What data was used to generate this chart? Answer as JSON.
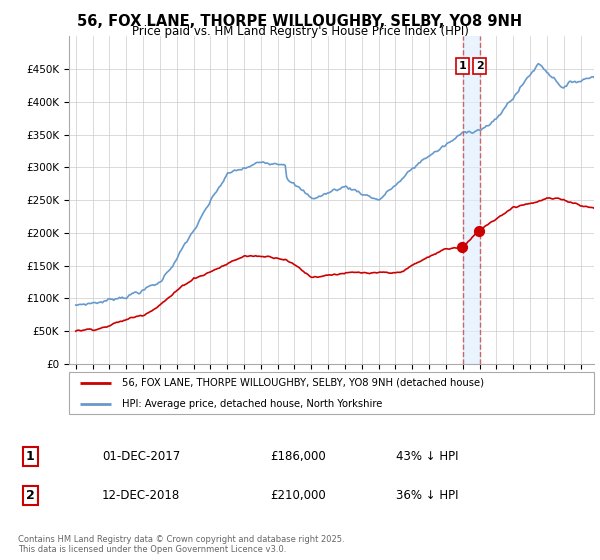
{
  "title": "56, FOX LANE, THORPE WILLOUGHBY, SELBY, YO8 9NH",
  "subtitle": "Price paid vs. HM Land Registry's House Price Index (HPI)",
  "legend_label_red": "56, FOX LANE, THORPE WILLOUGHBY, SELBY, YO8 9NH (detached house)",
  "legend_label_blue": "HPI: Average price, detached house, North Yorkshire",
  "annotation1_label": "1",
  "annotation1_date": "01-DEC-2017",
  "annotation1_price": "£186,000",
  "annotation1_pct": "43% ↓ HPI",
  "annotation2_label": "2",
  "annotation2_date": "12-DEC-2018",
  "annotation2_price": "£210,000",
  "annotation2_pct": "36% ↓ HPI",
  "footer": "Contains HM Land Registry data © Crown copyright and database right 2025.\nThis data is licensed under the Open Government Licence v3.0.",
  "color_red": "#cc0000",
  "color_blue": "#6699cc",
  "color_dashed": "#cc6666",
  "color_shade": "#ddeeff",
  "background_color": "#ffffff",
  "grid_color": "#cccccc",
  "ylim": [
    0,
    500000
  ],
  "yticks": [
    0,
    50000,
    100000,
    150000,
    200000,
    250000,
    300000,
    350000,
    400000,
    450000
  ],
  "year_start": 1995,
  "year_end": 2025,
  "purchase1_year": 2018.0,
  "purchase1_value": 186000,
  "purchase2_year": 2019.0,
  "purchase2_value": 210000
}
